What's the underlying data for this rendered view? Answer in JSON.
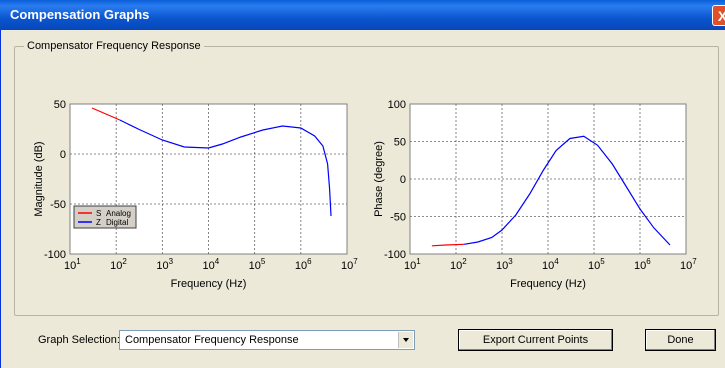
{
  "window": {
    "title": "Compensation Graphs",
    "close_glyph": "X"
  },
  "group": {
    "label": "Compensator Frequency Response"
  },
  "legend": [
    {
      "prefix": "S",
      "label": "Analog",
      "color": "#ff0000"
    },
    {
      "prefix": "Z",
      "label": "Digital",
      "color": "#0000ff"
    }
  ],
  "chart_data": [
    {
      "type": "line",
      "xlabel": "Frequency (Hz)",
      "ylabel": "Magnitude (dB)",
      "xscale": "log",
      "xlim_exp": [
        1,
        7
      ],
      "ylim": [
        -100,
        50
      ],
      "ytick_labels": [
        "50",
        "0",
        "-50",
        "-100"
      ],
      "yticks": [
        50,
        0,
        -50,
        -100
      ],
      "grid": true,
      "series": [
        {
          "name": "Analog",
          "color": "#ff0000",
          "x": [
            30,
            60,
            120
          ],
          "y": [
            46,
            40,
            34
          ]
        },
        {
          "name": "Digital",
          "color": "#0000ff",
          "x": [
            120,
            300,
            1000,
            3000,
            10000,
            20000,
            50000,
            150000,
            400000,
            1000000,
            2000000,
            3000000,
            3800000,
            4200000,
            4500000
          ],
          "y": [
            34,
            25,
            14,
            7,
            6,
            10,
            17,
            24,
            28,
            26,
            18,
            8,
            -10,
            -35,
            -62
          ]
        }
      ]
    },
    {
      "type": "line",
      "xlabel": "Frequency (Hz)",
      "ylabel": "Phase (degree)",
      "xscale": "log",
      "xlim_exp": [
        1,
        7
      ],
      "ylim": [
        -100,
        100
      ],
      "ytick_labels": [
        "100",
        "50",
        "0",
        "-50",
        "-100"
      ],
      "yticks": [
        100,
        50,
        0,
        -50,
        -100
      ],
      "grid": true,
      "series": [
        {
          "name": "Analog",
          "color": "#ff0000",
          "x": [
            30,
            60,
            150
          ],
          "y": [
            -89,
            -88,
            -87
          ]
        },
        {
          "name": "Digital",
          "color": "#0000ff",
          "x": [
            150,
            300,
            600,
            1000,
            2000,
            4000,
            8000,
            15000,
            30000,
            60000,
            120000,
            250000,
            500000,
            1000000,
            2000000,
            4500000
          ],
          "y": [
            -87,
            -84,
            -78,
            -68,
            -48,
            -20,
            12,
            38,
            54,
            57,
            45,
            20,
            -10,
            -40,
            -65,
            -88
          ]
        }
      ]
    }
  ],
  "footer": {
    "graph_selection_label": "Graph Selection:",
    "graph_selection_value": "Compensator Frequency Response",
    "export_label": "Export Current Points",
    "done_label": "Done"
  }
}
